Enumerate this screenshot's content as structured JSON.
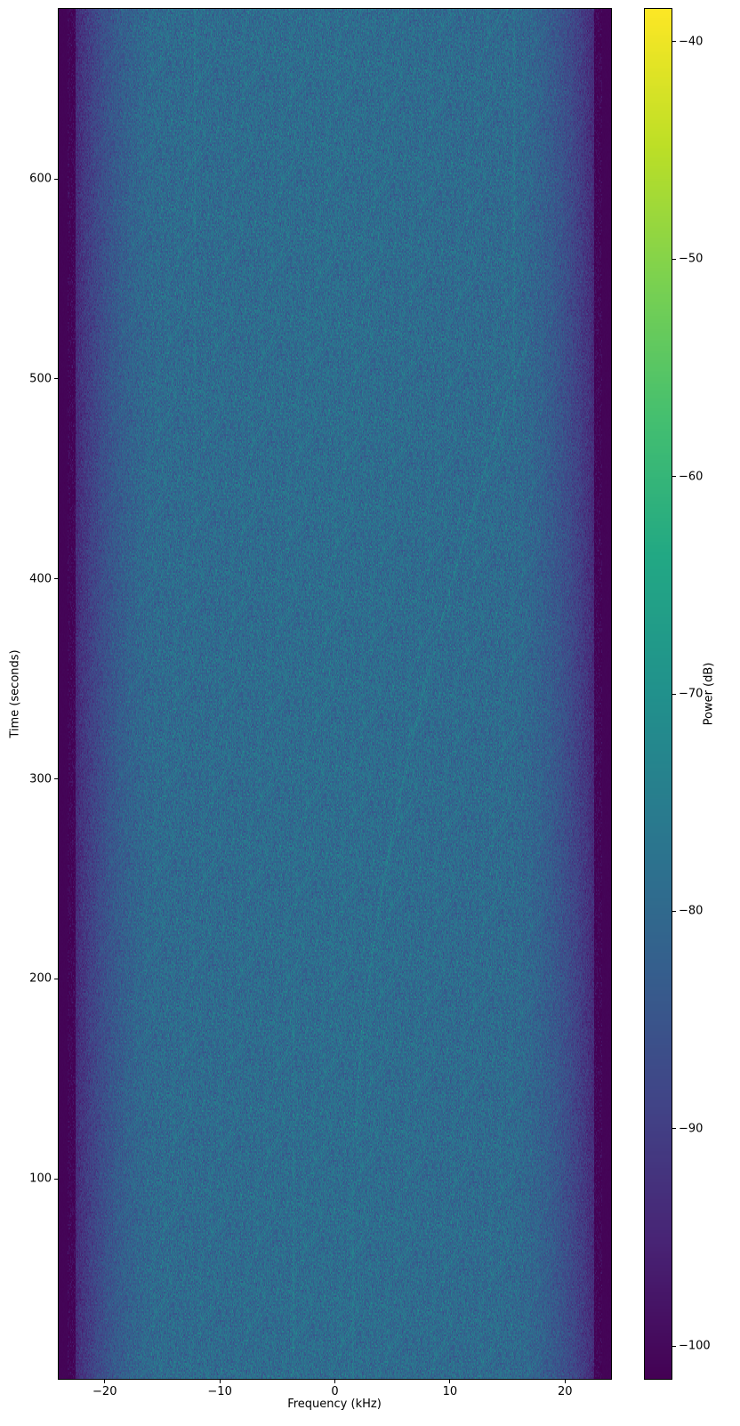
{
  "chart_data": {
    "type": "heatmap",
    "title": "",
    "xlabel": "Frequency (kHz)",
    "ylabel": "Time (seconds)",
    "xlim": [
      -24,
      24
    ],
    "ylim": [
      0,
      685
    ],
    "xticks": [
      -20,
      -10,
      0,
      10,
      20
    ],
    "xtick_labels": [
      "−20",
      "−10",
      "0",
      "10",
      "20"
    ],
    "yticks": [
      100,
      200,
      300,
      400,
      500,
      600
    ],
    "ytick_labels": [
      "100",
      "200",
      "300",
      "400",
      "500",
      "600"
    ],
    "colormap": "viridis",
    "colorbar": {
      "label": "Power (dB)",
      "vmin": -101.5,
      "vmax": -38.5,
      "ticks": [
        -40,
        -50,
        -60,
        -70,
        -80,
        -90,
        -100
      ],
      "tick_labels": [
        "−40",
        "−50",
        "−60",
        "−70",
        "−80",
        "−90",
        "−100"
      ]
    },
    "description_values": {
      "noise_floor_db_center": -79,
      "edge_level_db": -101,
      "passband_edge_khz": 22.5
    },
    "grid": false
  }
}
